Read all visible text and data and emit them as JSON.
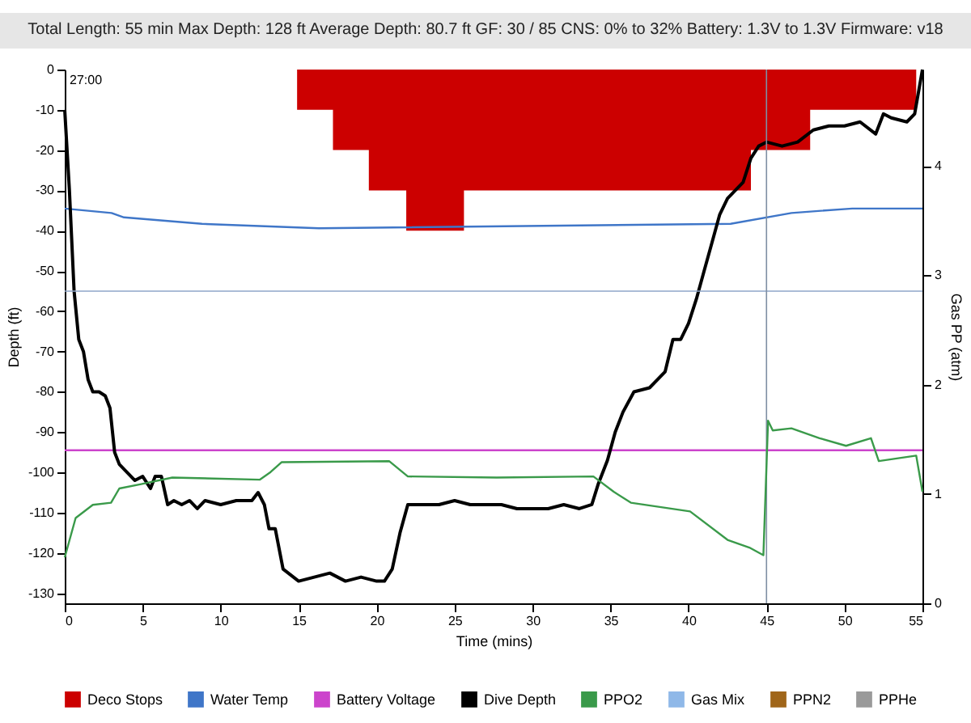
{
  "chart_data": {
    "type": "line",
    "subtitle": "Total Length: 55 min    Max Depth: 128 ft    Average Depth: 80.7 ft    GF: 30 / 85    CNS: 0% to 32%    Battery: 1.3V to 1.3V    Firmware: v18",
    "xlabel": "Time (mins)",
    "ylabel": "Depth (ft)",
    "y2label": "Gas PP (atm)",
    "xlim": [
      0,
      55
    ],
    "xticks": [
      0,
      5,
      10,
      15,
      20,
      25,
      30,
      35,
      40,
      45,
      50,
      55
    ],
    "ylim": [
      -132.5,
      0
    ],
    "yticks": [
      0,
      -10,
      -20,
      -30,
      -40,
      -50,
      -60,
      -70,
      -80,
      -90,
      -100,
      -110,
      -120,
      -130
    ],
    "y2lim": [
      0,
      4.88
    ],
    "y2ticks": [
      0,
      1,
      2,
      3,
      4
    ],
    "legend": "bottom",
    "annotations": [
      "27:00"
    ],
    "ref_lines": [
      {
        "axis": "y",
        "value": -55,
        "color": "#8fa6c8"
      },
      {
        "axis": "x",
        "value": 45,
        "color": "#7f8fa3"
      }
    ],
    "series": [
      {
        "name": "Deco Stops",
        "type": "area",
        "color": "#cc0000",
        "x": [
          14.9,
          17.2,
          19.5,
          21.9,
          25.6,
          44.0,
          47.8,
          54.6
        ],
        "values": [
          -10,
          -20,
          -30,
          -40,
          -30,
          -20,
          -10,
          -10
        ]
      },
      {
        "name": "Water Temp",
        "color": "#3f76c8",
        "x": [
          0,
          3.0,
          3.8,
          8.8,
          16.3,
          42.7,
          46.6,
          50.5,
          55
        ],
        "values": [
          -34.5,
          -35.6,
          -36.7,
          -38.3,
          -39.4,
          -38.3,
          -35.6,
          -34.5,
          -34.5
        ]
      },
      {
        "name": "Battery Voltage",
        "color": "#cc44cc",
        "x": [
          0,
          55
        ],
        "values": [
          -94.5,
          -94.5
        ]
      },
      {
        "name": "Dive Depth",
        "color": "#000000",
        "x": [
          0,
          0.3,
          0.6,
          0.9,
          1.2,
          1.5,
          1.8,
          2.2,
          2.6,
          2.9,
          3.2,
          3.5,
          4,
          4.5,
          5,
          5.5,
          5.8,
          6.2,
          6.6,
          7,
          7.5,
          8,
          8.5,
          9,
          10,
          11,
          12,
          12.4,
          12.8,
          13.1,
          13.5,
          14,
          15,
          16,
          17,
          18,
          19,
          20,
          20.5,
          21,
          21.5,
          22,
          23,
          24,
          25,
          26,
          27,
          28,
          29,
          30,
          31,
          32,
          33,
          33.8,
          34.2,
          34.8,
          35.3,
          35.8,
          36.5,
          37.5,
          38.5,
          39,
          39.5,
          40,
          40.5,
          41,
          41.5,
          42,
          42.5,
          43,
          43.5,
          44,
          44.5,
          45,
          46,
          47,
          48,
          49,
          50,
          51,
          52,
          52.5,
          53,
          54,
          54.5,
          55
        ],
        "values": [
          -10,
          -30,
          -55,
          -67,
          -70,
          -77,
          -80,
          -80,
          -81,
          -84,
          -95,
          -98,
          -100,
          -102,
          -101,
          -104,
          -101,
          -101,
          -108,
          -107,
          -108,
          -107,
          -109,
          -107,
          -108,
          -107,
          -107,
          -105,
          -108,
          -114,
          -114,
          -124,
          -127,
          -126,
          -125,
          -127,
          -126,
          -127,
          -127,
          -124,
          -115,
          -108,
          -108,
          -108,
          -107,
          -108,
          -108,
          -108,
          -109,
          -109,
          -109,
          -108,
          -109,
          -108,
          -103,
          -97,
          -90,
          -85,
          -80,
          -79,
          -75,
          -67,
          -67,
          -63,
          -57,
          -50,
          -43,
          -36,
          -32,
          -30,
          -28,
          -22,
          -19,
          -18,
          -19,
          -18,
          -15,
          -14,
          -14,
          -13,
          -16,
          -11,
          -12,
          -13,
          -11,
          0
        ]
      },
      {
        "name": "PPO2",
        "axis": "y2",
        "color": "#3a9a4a",
        "x": [
          0,
          0.7,
          1.8,
          2.97,
          3.5,
          4.9,
          6.9,
          12.5,
          13.2,
          13.9,
          20.8,
          22,
          27.7,
          33.9,
          35.2,
          36.3,
          40.1,
          42.5,
          43.9,
          44.8,
          45.1,
          45.4,
          46.6,
          48.4,
          50.1,
          51.7,
          52.2,
          54.6,
          55
        ],
        "values": [
          0.42,
          0.78,
          0.9,
          0.92,
          1.05,
          1.09,
          1.15,
          1.13,
          1.2,
          1.29,
          1.3,
          1.16,
          1.15,
          1.16,
          1.02,
          0.92,
          0.84,
          0.58,
          0.51,
          0.44,
          1.67,
          1.58,
          1.6,
          1.51,
          1.44,
          1.51,
          1.3,
          1.35,
          1.02
        ]
      },
      {
        "name": "Gas Mix",
        "color": "#8fb8e8"
      },
      {
        "name": "PPN2",
        "color": "#a0661a"
      },
      {
        "name": "PPHe",
        "color": "#9a9a9a"
      }
    ]
  }
}
